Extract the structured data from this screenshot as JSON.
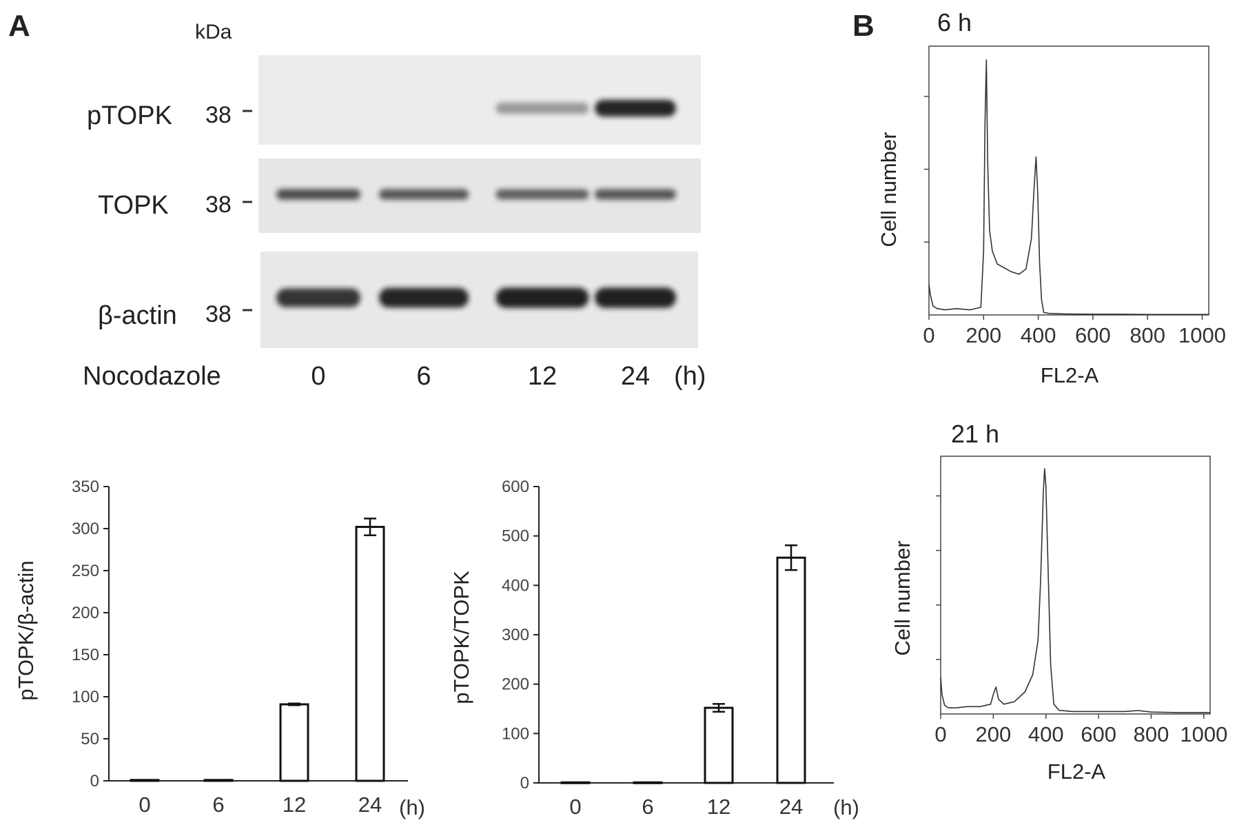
{
  "panel_labels": {
    "a": "A",
    "b": "B"
  },
  "western_blot": {
    "kda_label": "kDa",
    "condition_label": "Nocodazole",
    "unit_label": "(h)",
    "lanes": [
      "0",
      "6",
      "12",
      "24"
    ],
    "rows": [
      {
        "protein": "pTOPK",
        "mw": "38",
        "intensity": [
          0,
          0,
          0.3,
          1.0
        ]
      },
      {
        "protein": "TOPK",
        "mw": "38",
        "intensity": [
          0.75,
          0.7,
          0.65,
          0.7
        ]
      },
      {
        "protein": "β-actin",
        "mw": "38",
        "intensity": [
          0.9,
          1.0,
          1.05,
          1.05
        ]
      }
    ]
  },
  "chart_data": [
    {
      "type": "bar",
      "ylabel": "pTOPK/β-actin",
      "xunit": "(h)",
      "categories": [
        "0",
        "6",
        "12",
        "24"
      ],
      "values": [
        1,
        1,
        91,
        302
      ],
      "errors": [
        0,
        0,
        1,
        10
      ],
      "ylim": [
        0,
        350
      ],
      "yticks": [
        0,
        50,
        100,
        150,
        200,
        250,
        300,
        350
      ],
      "colors": {
        "bar_fill": "#ffffff",
        "bar_stroke": "#111111"
      }
    },
    {
      "type": "bar",
      "ylabel": "pTOPK/TOPK",
      "xunit": "(h)",
      "categories": [
        "0",
        "6",
        "12",
        "24"
      ],
      "values": [
        1,
        1,
        152,
        456
      ],
      "errors": [
        0,
        0,
        8,
        25
      ],
      "ylim": [
        0,
        600
      ],
      "yticks": [
        0,
        100,
        200,
        300,
        400,
        500,
        600
      ],
      "colors": {
        "bar_fill": "#ffffff",
        "bar_stroke": "#111111"
      }
    },
    {
      "type": "line",
      "title": "6 h",
      "xlabel": "FL2-A",
      "ylabel": "Cell number",
      "xlim": [
        0,
        1024
      ],
      "xticks": [
        0,
        200,
        400,
        600,
        800,
        1000
      ],
      "ylim": [
        0,
        1
      ],
      "x": [
        0,
        5,
        15,
        30,
        60,
        100,
        150,
        190,
        200,
        205,
        210,
        215,
        222,
        232,
        250,
        275,
        300,
        330,
        355,
        375,
        385,
        392,
        398,
        405,
        412,
        420,
        440,
        500,
        600,
        700,
        800,
        900,
        1000,
        1024
      ],
      "y": [
        0.12,
        0.08,
        0.035,
        0.025,
        0.02,
        0.025,
        0.02,
        0.03,
        0.25,
        0.75,
        1.0,
        0.6,
        0.33,
        0.25,
        0.2,
        0.185,
        0.17,
        0.16,
        0.18,
        0.3,
        0.5,
        0.62,
        0.48,
        0.2,
        0.06,
        0.01,
        0.006,
        0.004,
        0.003,
        0.003,
        0.002,
        0.002,
        0.002,
        0.002
      ]
    },
    {
      "type": "line",
      "title": "21 h",
      "xlabel": "FL2-A",
      "ylabel": "Cell number",
      "xlim": [
        0,
        1024
      ],
      "xticks": [
        0,
        200,
        400,
        600,
        800,
        1000
      ],
      "ylim": [
        0,
        1
      ],
      "x": [
        0,
        5,
        15,
        30,
        60,
        100,
        150,
        190,
        200,
        210,
        220,
        240,
        280,
        320,
        350,
        370,
        380,
        390,
        395,
        400,
        408,
        418,
        430,
        450,
        500,
        600,
        700,
        750,
        800,
        900,
        1000,
        1024
      ],
      "y": [
        0.15,
        0.08,
        0.035,
        0.025,
        0.025,
        0.03,
        0.03,
        0.04,
        0.08,
        0.11,
        0.06,
        0.04,
        0.05,
        0.09,
        0.16,
        0.3,
        0.55,
        0.9,
        1.0,
        0.93,
        0.6,
        0.2,
        0.04,
        0.015,
        0.01,
        0.01,
        0.01,
        0.014,
        0.008,
        0.006,
        0.006,
        0.006
      ]
    }
  ]
}
